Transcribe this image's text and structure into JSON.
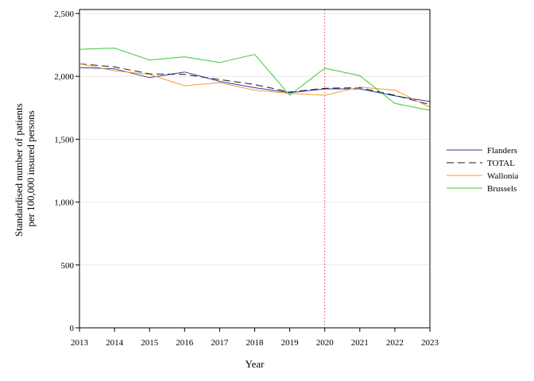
{
  "chart_data": {
    "type": "line",
    "title": "",
    "xlabel": "Year",
    "ylabel_lines": [
      "Standardised number of patients",
      "per 100,000 insured persons"
    ],
    "x": [
      2013,
      2014,
      2015,
      2016,
      2017,
      2018,
      2019,
      2020,
      2021,
      2022,
      2023
    ],
    "x_tick_labels": [
      "2013",
      "2014",
      "2015",
      "2016",
      "2017",
      "2018",
      "2019",
      "2020",
      "2021",
      "2022",
      "2023"
    ],
    "ylim": [
      0,
      2500
    ],
    "y_ticks": [
      0,
      500,
      1000,
      1500,
      2000,
      2500
    ],
    "y_tick_labels": [
      "0",
      "500",
      "1,000",
      "1,500",
      "2,000",
      "2,500"
    ],
    "grid": "horizontal",
    "legend_position": "right",
    "reference_line": {
      "x": 2020,
      "color": "#e0404a",
      "style": "dotted"
    },
    "series": [
      {
        "name": "Flanders",
        "color": "#2e3aa8",
        "dash": "solid",
        "values": [
          2070,
          2060,
          1990,
          2035,
          1960,
          1910,
          1870,
          1900,
          1900,
          1845,
          1800
        ]
      },
      {
        "name": "TOTAL",
        "color": "#1a1a1a",
        "dash": "dashed",
        "values": [
          2100,
          2075,
          2020,
          2015,
          1975,
          1935,
          1875,
          1905,
          1910,
          1850,
          1775
        ]
      },
      {
        "name": "Wallonia",
        "color": "#f59a2c",
        "dash": "solid",
        "values": [
          2100,
          2045,
          2015,
          1925,
          1950,
          1890,
          1865,
          1850,
          1915,
          1890,
          1755
        ]
      },
      {
        "name": "Brussels",
        "color": "#3fc83a",
        "dash": "solid",
        "values": [
          2215,
          2225,
          2130,
          2155,
          2110,
          2175,
          1850,
          2065,
          2005,
          1785,
          1730
        ]
      }
    ]
  }
}
